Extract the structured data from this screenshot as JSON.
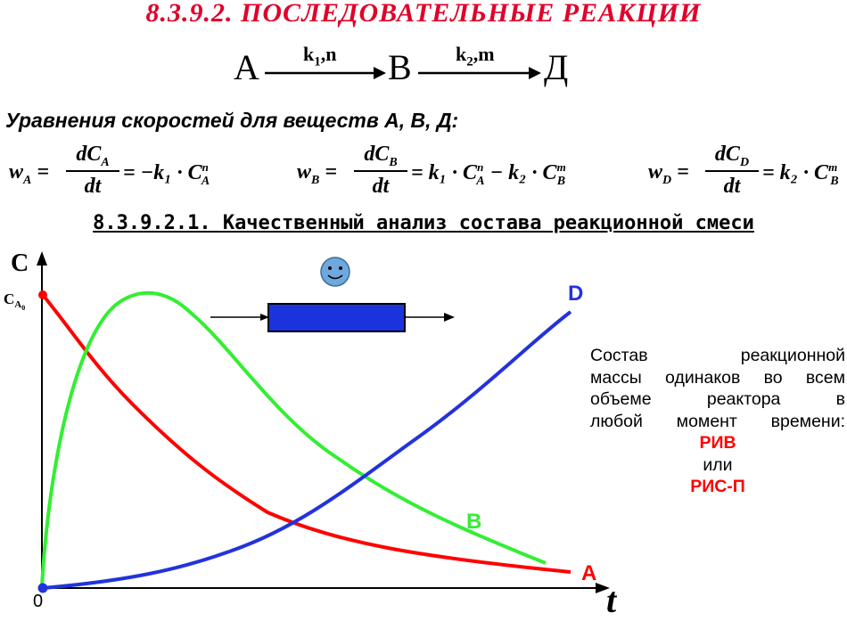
{
  "title": "8.3.9.2. ПОСЛЕДОВАТЕЛЬНЫЕ РЕАКЦИИ",
  "scheme": {
    "a": "А",
    "b": "В",
    "d": "Д",
    "k1": "k",
    "k1_sub": "1",
    "k1_order": ",n",
    "k2": "k",
    "k2_sub": "2",
    "k2_order": ",m"
  },
  "rates_heading": "Уравнения скоростей для веществ А, В, Д:",
  "equations": {
    "wA": {
      "lhs": "w",
      "lhs_sub": "A",
      "num": "dC",
      "num_sub": "A",
      "den": "dt",
      "rhs": "= −k₁ · C",
      "rhs_sub": "A",
      "rhs_sup": "n"
    },
    "wB": {
      "lhs": "w",
      "lhs_sub": "B",
      "num": "dC",
      "num_sub": "B",
      "den": "dt",
      "rhs1": "= k₁ · C",
      "rhs1_sub": "A",
      "rhs1_sup": "n",
      "rhs2": " − k₂ · C",
      "rhs2_sub": "B",
      "rhs2_sup": "m"
    },
    "wD": {
      "lhs": "w",
      "lhs_sub": "D",
      "num": "dC",
      "num_sub": "D",
      "den": "dt",
      "rhs": "= k₂ · C",
      "rhs_sub": "B",
      "rhs_sup": "m"
    }
  },
  "section_title": "8.3.9.2.1. Качественный анализ состава реакционной смеси",
  "plot": {
    "y_axis_label": "C",
    "y0_label": "C",
    "y0_sub": "A",
    "y0_subsub": "0",
    "origin_label": "0",
    "x_axis_label": "t",
    "curves": [
      {
        "name": "A",
        "color": "#ff0000"
      },
      {
        "name": "B",
        "color": "#33ee33"
      },
      {
        "name": "D",
        "color": "#2233dd"
      }
    ],
    "reactor_color": "#1a33dd",
    "smiley_color": "#6fa8dc"
  },
  "side_text": {
    "line1": "Состав реакционной",
    "line2": "массы одинаков во всем",
    "line3": "объеме реактора в",
    "line4": "любой момент времени:",
    "riv": "РИВ",
    "or": "или",
    "ris": "РИС-П"
  }
}
